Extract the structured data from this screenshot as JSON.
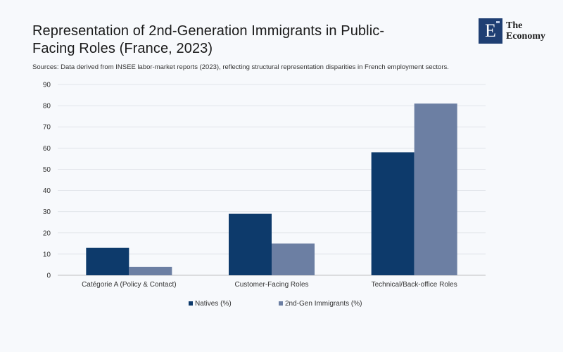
{
  "header": {
    "title": "Representation of 2nd-Generation Immigrants in Public-Facing Roles (France, 2023)",
    "subtitle": "Sources: Data derived from INSEE labor-market reports (2023), reflecting structural representation disparities in French employment sectors."
  },
  "logo": {
    "mark": "E",
    "line1": "The",
    "line2": "Economy",
    "color": "#1f3f73"
  },
  "chart_data": {
    "type": "bar",
    "title": "Representation of 2nd-Generation Immigrants in Public-Facing Roles (France, 2023)",
    "xlabel": "",
    "ylabel": "",
    "categories": [
      "Catégorie A (Policy & Contact)",
      "Customer-Facing Roles",
      "Technical/Back-office Roles"
    ],
    "series": [
      {
        "name": "Natives (%)",
        "values": [
          13,
          29,
          58
        ],
        "color": "#0d3a6b"
      },
      {
        "name": "2nd-Gen Immigrants (%)",
        "values": [
          4,
          15,
          81
        ],
        "color": "#6c7fa3"
      }
    ],
    "ylim": [
      0,
      90
    ],
    "yticks": [
      0,
      10,
      20,
      30,
      40,
      50,
      60,
      70,
      80,
      90
    ],
    "grid": true,
    "legend": "bottom-center"
  }
}
